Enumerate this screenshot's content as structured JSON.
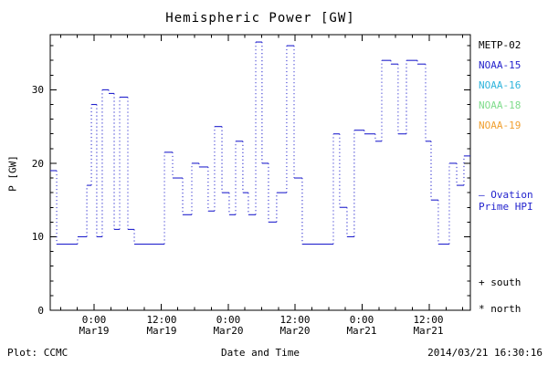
{
  "legend": {
    "satellites": [
      {
        "label": "METP-02",
        "color": "#000000"
      },
      {
        "label": "NOAA-15",
        "color": "#2323cd"
      },
      {
        "label": "NOAA-16",
        "color": "#2fb4dc"
      },
      {
        "label": "NOAA-18",
        "color": "#7fdc8c"
      },
      {
        "label": "NOAA-19",
        "color": "#f0a030"
      }
    ],
    "hpi": {
      "line1": "– Ovation",
      "line2": "Prime HPI",
      "color": "#2323cd"
    },
    "south_label": "+ south",
    "north_label": "* north"
  },
  "footer": {
    "plot_credit": "Plot: CCMC",
    "timestamp": "2014/03/21 16:30:16"
  },
  "chart_data": {
    "type": "line",
    "step": true,
    "title": "Hemispheric Power [GW]",
    "xlabel": "Date and Time",
    "ylabel": "P [GW]",
    "xlim": [
      18.673,
      21.807
    ],
    "ylim": [
      0,
      37.5
    ],
    "grid": false,
    "legend_position": "right",
    "y_ticks": [
      0,
      10,
      20,
      30
    ],
    "y_minor_step": 2,
    "x_minor_step": 0.125,
    "x_ticks": [
      {
        "value": 19.0,
        "line1": "0:00",
        "line2": "Mar19"
      },
      {
        "value": 19.5,
        "line1": "12:00",
        "line2": "Mar19"
      },
      {
        "value": 20.0,
        "line1": "0:00",
        "line2": "Mar20"
      },
      {
        "value": 20.5,
        "line1": "12:00",
        "line2": "Mar20"
      },
      {
        "value": 21.0,
        "line1": "0:00",
        "line2": "Mar21"
      },
      {
        "value": 21.5,
        "line1": "12:00",
        "line2": "Mar21"
      }
    ],
    "series": [
      {
        "name": "Ovation Prime HPI",
        "color": "#2323cd",
        "points": [
          [
            18.673,
            19
          ],
          [
            18.721,
            9
          ],
          [
            18.877,
            10
          ],
          [
            18.946,
            17
          ],
          [
            18.98,
            28
          ],
          [
            19.02,
            10
          ],
          [
            19.061,
            30
          ],
          [
            19.109,
            29.5
          ],
          [
            19.15,
            11
          ],
          [
            19.191,
            29
          ],
          [
            19.252,
            11
          ],
          [
            19.3,
            9
          ],
          [
            19.525,
            21.5
          ],
          [
            19.586,
            18
          ],
          [
            19.661,
            13
          ],
          [
            19.729,
            20
          ],
          [
            19.783,
            19.5
          ],
          [
            19.851,
            13.5
          ],
          [
            19.899,
            25
          ],
          [
            19.954,
            16
          ],
          [
            20.008,
            13
          ],
          [
            20.056,
            23
          ],
          [
            20.11,
            16
          ],
          [
            20.151,
            13
          ],
          [
            20.206,
            36.5
          ],
          [
            20.253,
            20
          ],
          [
            20.301,
            12
          ],
          [
            20.362,
            16
          ],
          [
            20.437,
            36
          ],
          [
            20.492,
            18
          ],
          [
            20.553,
            9
          ],
          [
            20.785,
            24
          ],
          [
            20.832,
            14
          ],
          [
            20.887,
            10
          ],
          [
            20.941,
            24.5
          ],
          [
            21.016,
            24
          ],
          [
            21.098,
            23
          ],
          [
            21.146,
            34
          ],
          [
            21.214,
            33.5
          ],
          [
            21.268,
            24
          ],
          [
            21.33,
            34
          ],
          [
            21.412,
            33.5
          ],
          [
            21.473,
            23
          ],
          [
            21.514,
            15
          ],
          [
            21.568,
            9
          ],
          [
            21.65,
            20
          ],
          [
            21.705,
            17
          ],
          [
            21.759,
            21
          ]
        ]
      }
    ]
  }
}
